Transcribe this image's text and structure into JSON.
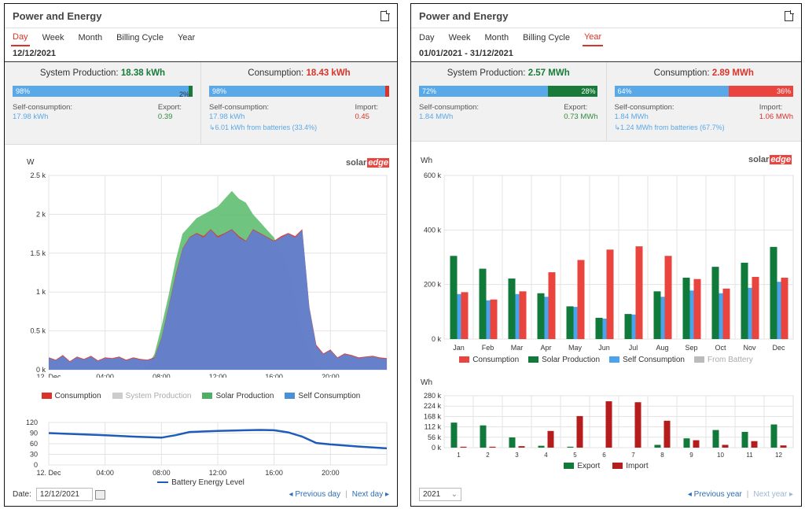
{
  "left": {
    "title": "Power and Energy",
    "tabs": [
      "Day",
      "Week",
      "Month",
      "Billing Cycle",
      "Year"
    ],
    "active_tab": 0,
    "date_range": "12/12/2021",
    "production": {
      "label": "System Production:",
      "value": "18.38 kWh",
      "bar_left": "98%",
      "bar_right": "2%",
      "bar_fraction": 0.98,
      "sub_left_label": "Self-consumption:",
      "sub_left_value": "17.98 kWh",
      "sub_right_label": "Export:",
      "sub_right_value": "0.39"
    },
    "consumption": {
      "label": "Consumption:",
      "value": "18.43 kWh",
      "bar_left": "98%",
      "bar_right": "",
      "bar_fraction": 0.98,
      "sub_left_label": "Self-consumption:",
      "sub_left_value": "17.98 kWh",
      "sub_right_label": "Import:",
      "sub_right_value": "0.45",
      "batteries": "↳6.01 kWh from batteries (33.4%)"
    },
    "brand_a": "solar",
    "brand_b": "edge",
    "legend": [
      "Consumption",
      "System Production",
      "Solar Production",
      "Self Consumption"
    ],
    "battery_legend": "Battery Energy Level",
    "date_label": "Date:",
    "date_value": "12/12/2021",
    "prev": "◂ Previous day",
    "next": "Next day ▸"
  },
  "right": {
    "title": "Power and Energy",
    "tabs": [
      "Day",
      "Week",
      "Month",
      "Billing Cycle",
      "Year"
    ],
    "active_tab": 4,
    "date_range": "01/01/2021 - 31/12/2021",
    "production": {
      "label": "System Production:",
      "value": "2.57 MWh",
      "bar_left": "72%",
      "bar_right": "28%",
      "bar_fraction": 0.72,
      "sub_left_label": "Self-consumption:",
      "sub_left_value": "1.84 MWh",
      "sub_right_label": "Export:",
      "sub_right_value": "0.73 MWh"
    },
    "consumption": {
      "label": "Consumption:",
      "value": "2.89 MWh",
      "bar_left": "64%",
      "bar_right": "36%",
      "bar_fraction": 0.64,
      "sub_left_label": "Self-consumption:",
      "sub_left_value": "1.84 MWh",
      "sub_right_label": "Import:",
      "sub_right_value": "1.06 MWh",
      "batteries": "↳1.24 MWh from batteries (67.7%)"
    },
    "brand_a": "solar",
    "brand_b": "edge",
    "legend": [
      "Consumption",
      "Solar Production",
      "Self Consumption",
      "From Battery"
    ],
    "legend2": [
      "Export",
      "Import"
    ],
    "year_value": "2021",
    "prev": "◂ Previous year",
    "next": "Next year ▸"
  },
  "chart_data": [
    {
      "type": "area",
      "ylabel": "W",
      "ylim": [
        0,
        2500
      ],
      "yticks": [
        "0 k",
        "0.5 k",
        "1 k",
        "1.5 k",
        "2 k",
        "2.5 k"
      ],
      "xticks": [
        "12. Dec",
        "04:00",
        "08:00",
        "12:00",
        "16:00",
        "20:00"
      ],
      "x_hours": [
        0,
        0.5,
        1,
        1.5,
        2,
        2.5,
        3,
        3.5,
        4,
        4.5,
        5,
        5.5,
        6,
        6.5,
        7,
        7.5,
        8,
        8.5,
        9,
        9.5,
        10,
        10.5,
        11,
        11.5,
        12,
        12.5,
        13,
        13.5,
        14,
        14.5,
        15,
        15.5,
        16,
        16.5,
        17,
        17.5,
        18,
        18.5,
        19,
        19.5,
        20,
        20.5,
        21,
        21.5,
        22,
        22.5,
        23,
        23.5,
        24
      ],
      "series": [
        {
          "name": "Solar Production",
          "values": [
            0,
            0,
            0,
            0,
            0,
            0,
            0,
            0,
            0,
            0,
            0,
            0,
            0,
            0,
            50,
            200,
            550,
            950,
            1400,
            1750,
            1850,
            1950,
            2000,
            2050,
            2100,
            2200,
            2300,
            2200,
            2150,
            2000,
            1900,
            1800,
            1700,
            1500,
            1300,
            900,
            500,
            200,
            50,
            0,
            0,
            0,
            0,
            0,
            0,
            0,
            0,
            0,
            0
          ]
        },
        {
          "name": "Self Consumption",
          "values": [
            150,
            120,
            180,
            100,
            160,
            130,
            170,
            110,
            150,
            140,
            160,
            120,
            150,
            130,
            120,
            150,
            400,
            800,
            1200,
            1550,
            1700,
            1750,
            1700,
            1800,
            1700,
            1750,
            1800,
            1700,
            1650,
            1800,
            1750,
            1700,
            1650,
            1700,
            1750,
            1700,
            1800,
            800,
            300,
            200,
            250,
            150,
            200,
            180,
            150,
            160,
            170,
            150,
            140
          ]
        },
        {
          "name": "Consumption",
          "values": [
            160,
            130,
            190,
            110,
            170,
            140,
            180,
            120,
            160,
            150,
            170,
            130,
            160,
            140,
            130,
            160,
            410,
            810,
            1220,
            1560,
            1710,
            1760,
            1720,
            1810,
            1720,
            1760,
            1810,
            1720,
            1660,
            1810,
            1760,
            1710,
            1660,
            1720,
            1760,
            1720,
            1810,
            810,
            320,
            210,
            260,
            160,
            210,
            190,
            160,
            170,
            180,
            160,
            150
          ]
        }
      ]
    },
    {
      "type": "line",
      "legend": "Battery Energy Level",
      "ylim": [
        0,
        120
      ],
      "yticks": [
        "0",
        "30",
        "60",
        "90",
        "120"
      ],
      "yticks_all": [
        "0",
        "15",
        "30",
        "45",
        "60",
        "75",
        "90",
        "105",
        "120"
      ],
      "xticks": [
        "12. Dec",
        "04:00",
        "08:00",
        "12:00",
        "16:00",
        "20:00"
      ],
      "x_hours": [
        0,
        2,
        4,
        6,
        8,
        9,
        10,
        12,
        14,
        15,
        16,
        17,
        18,
        19,
        20,
        22,
        24
      ],
      "values": [
        90,
        87,
        84,
        80,
        77,
        84,
        93,
        96,
        98,
        99,
        98,
        92,
        80,
        62,
        58,
        52,
        47
      ]
    },
    {
      "type": "bar",
      "ylabel": "Wh",
      "ylim": [
        0,
        600000
      ],
      "yticks": [
        "0 k",
        "200 k",
        "400 k",
        "600 k"
      ],
      "categories": [
        "Jan",
        "Feb",
        "Mar",
        "Apr",
        "May",
        "Jun",
        "Jul",
        "Aug",
        "Sep",
        "Oct",
        "Nov",
        "Dec"
      ],
      "series": [
        {
          "name": "Solar Production",
          "values": [
            305000,
            258000,
            222000,
            168000,
            120000,
            78000,
            92000,
            175000,
            225000,
            265000,
            280000,
            338000
          ]
        },
        {
          "name": "Self Consumption",
          "values": [
            165000,
            142000,
            165000,
            155000,
            118000,
            75000,
            90000,
            155000,
            178000,
            168000,
            188000,
            210000
          ]
        },
        {
          "name": "Consumption",
          "values": [
            172000,
            145000,
            175000,
            245000,
            290000,
            328000,
            340000,
            305000,
            220000,
            185000,
            228000,
            225000
          ]
        }
      ]
    },
    {
      "type": "bar",
      "ylabel": "Wh",
      "ylim": [
        0,
        280000
      ],
      "yticks": [
        "0 k",
        "56 k",
        "112 k",
        "168 k",
        "224 k",
        "280 k"
      ],
      "categories": [
        "1",
        "2",
        "3",
        "4",
        "5",
        "6",
        "7",
        "8",
        "9",
        "10",
        "11",
        "12"
      ],
      "series": [
        {
          "name": "Export",
          "values": [
            135000,
            120000,
            55000,
            10000,
            5000,
            0,
            0,
            15000,
            50000,
            95000,
            85000,
            125000
          ]
        },
        {
          "name": "Import",
          "values": [
            5000,
            5000,
            8000,
            90000,
            170000,
            250000,
            245000,
            145000,
            40000,
            15000,
            35000,
            12000
          ]
        }
      ]
    }
  ]
}
